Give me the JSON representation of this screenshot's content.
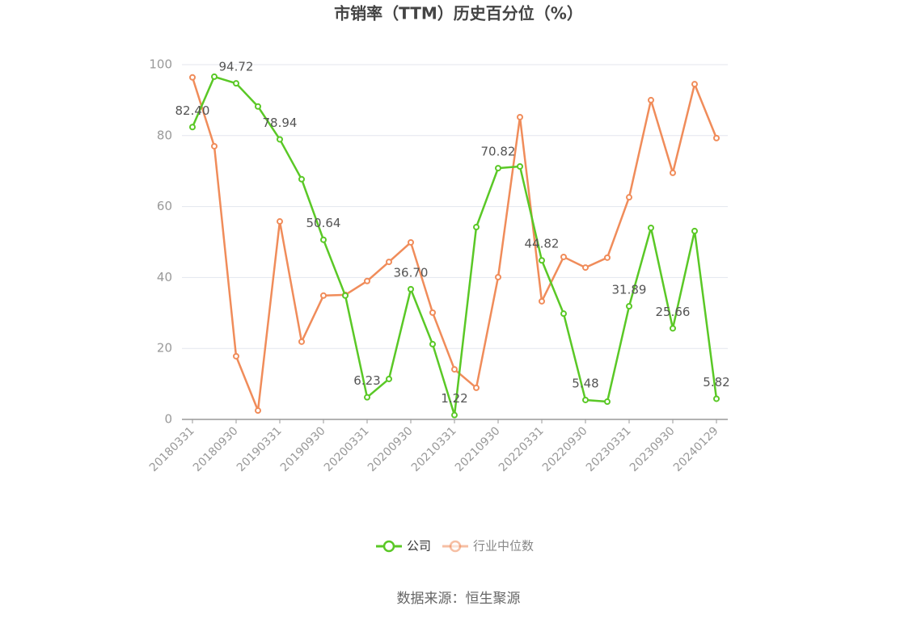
{
  "chart_data": {
    "type": "line",
    "title": "市销率（TTM）历史百分位（%）",
    "source": "数据来源：恒生聚源",
    "categories": [
      "20180331",
      null,
      "20180930",
      null,
      "20190331",
      null,
      "20190930",
      null,
      "20200331",
      null,
      "20200930",
      null,
      "20210331",
      null,
      "20210930",
      null,
      "20220331",
      null,
      "20220930",
      null,
      "20230331",
      null,
      "20230930",
      null,
      "20240129"
    ],
    "series": [
      {
        "name": "公司",
        "color": "#5ac826",
        "values": [
          82.4,
          96.6,
          94.72,
          88.2,
          78.94,
          67.7,
          50.64,
          34.9,
          6.23,
          11.4,
          36.7,
          21.2,
          1.22,
          54.2,
          70.82,
          71.3,
          44.82,
          29.8,
          5.48,
          5.0,
          31.89,
          54.0,
          25.66,
          53.1,
          5.82
        ],
        "value_labels": [
          "82.40",
          null,
          "94.72",
          null,
          "78.94",
          null,
          "50.64",
          null,
          "6.23",
          null,
          "36.70",
          null,
          "1.22",
          null,
          "70.82",
          null,
          "44.82",
          null,
          "5.48",
          null,
          "31.89",
          null,
          "25.66",
          null,
          "5.82"
        ]
      },
      {
        "name": "行业中位数",
        "color": "#f08c5a",
        "values": [
          96.4,
          77.0,
          17.8,
          2.5,
          55.8,
          21.9,
          34.9,
          35.1,
          39.0,
          44.4,
          49.9,
          30.1,
          14.1,
          8.9,
          40.1,
          85.2,
          33.3,
          45.8,
          42.8,
          45.6,
          62.6,
          90.0,
          69.5,
          94.5,
          79.3
        ]
      }
    ],
    "ylim": [
      0,
      100
    ],
    "yticks": [
      0,
      20,
      40,
      60,
      80,
      100
    ],
    "grid": true
  }
}
